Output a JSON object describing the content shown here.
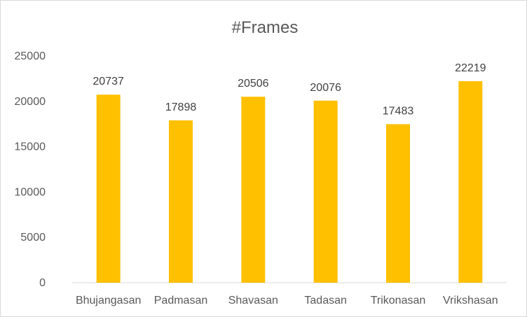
{
  "chart_data": {
    "type": "bar",
    "title": "#Frames",
    "xlabel": "",
    "ylabel": "",
    "categories": [
      "Bhujangasan",
      "Padmasan",
      "Shavasan",
      "Tadasan",
      "Trikonasan",
      "Vrikshasan"
    ],
    "series": [
      {
        "values": [
          20737,
          17898,
          20506,
          20076,
          17483,
          22219
        ]
      }
    ],
    "ylim": [
      0,
      25000
    ],
    "yticks": [
      "0",
      "5000",
      "10000",
      "15000",
      "20000",
      "25000"
    ],
    "data_labels": [
      "20737",
      "17898",
      "20506",
      "20076",
      "17483",
      "22219"
    ],
    "grid": false,
    "legend": "none",
    "colors": {
      "bar": "#FFC000",
      "axis": "#d9d9d9",
      "text": "#595959"
    }
  }
}
